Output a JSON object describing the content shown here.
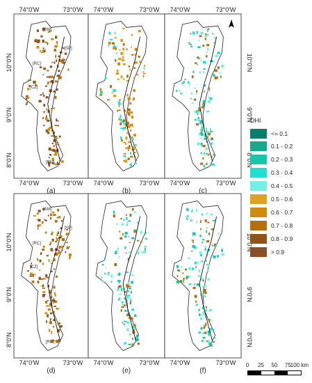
{
  "panels": [
    {
      "label": "(a)",
      "top_ticks": [
        "74°0'W",
        "73°0'W"
      ],
      "left_ticks": [
        "10°0'N",
        "9°0'N",
        "8°0'N"
      ],
      "right_ticks": [],
      "bottom_ticks": [
        "74°0'W",
        "73°0'W"
      ],
      "regions": [
        "[SM]",
        "[SP]",
        "[RC]",
        "[CZ]",
        "[RM]"
      ],
      "dominant": "brown"
    },
    {
      "label": "(b)",
      "top_ticks": [
        "74°0'W",
        "73°0'W"
      ],
      "left_ticks": [],
      "right_ticks": [],
      "bottom_ticks": [
        "74°0'W",
        "73°0'W"
      ],
      "regions": [],
      "dominant": "orange"
    },
    {
      "label": "(c)",
      "top_ticks": [
        "74°0'W",
        "73°0'W"
      ],
      "left_ticks": [],
      "right_ticks": [
        "10°0'N",
        "9°0'N",
        "8°0'N"
      ],
      "bottom_ticks": [
        "74°0'W",
        "73°0'W"
      ],
      "regions": [],
      "dominant": "cyan"
    },
    {
      "label": "(d)",
      "top_ticks": [],
      "left_ticks": [
        "10°0'N",
        "9°0'N",
        "8°0'N"
      ],
      "right_ticks": [],
      "bottom_ticks": [
        "74°0'W",
        "73°0'W"
      ],
      "regions": [
        "[SM]",
        "[SP]",
        "[RC]",
        "[CZ]",
        "[RM]"
      ],
      "dominant": "brown"
    },
    {
      "label": "(e)",
      "top_ticks": [],
      "left_ticks": [],
      "right_ticks": [],
      "bottom_ticks": [
        "74°0'W",
        "73°0'W"
      ],
      "regions": [],
      "dominant": "cyan"
    },
    {
      "label": "(f)",
      "top_ticks": [],
      "left_ticks": [],
      "right_ticks": [
        "10°0'N",
        "9°0'N",
        "8°0'N"
      ],
      "bottom_ticks": [
        "74°0'W",
        "73°0'W"
      ],
      "regions": [],
      "dominant": "cyan"
    }
  ],
  "legend": {
    "title": "DHI",
    "items": [
      {
        "label": "<= 0.1",
        "color": "#0b7f6b"
      },
      {
        "label": "0.1 - 0.2",
        "color": "#1aa88c"
      },
      {
        "label": "0.2 - 0.3",
        "color": "#17c6a8"
      },
      {
        "label": "0.3 - 0.4",
        "color": "#1fe0d2"
      },
      {
        "label": "0.4 - 0.5",
        "color": "#74efe6"
      },
      {
        "label": "0.5 - 0.6",
        "color": "#e0a020"
      },
      {
        "label": "0.6 - 0.7",
        "color": "#d08a10"
      },
      {
        "label": "0.7 - 0.8",
        "color": "#b56f10"
      },
      {
        "label": "0.8 - 0.9",
        "color": "#8f5518"
      },
      {
        "label": "> 0.9",
        "color": "#8a4f26"
      }
    ]
  },
  "scale_bar": {
    "labels": [
      "0",
      "25",
      "50",
      "75",
      "100 km"
    ]
  },
  "north_arrow": {
    "icon": "north-arrow-icon"
  }
}
